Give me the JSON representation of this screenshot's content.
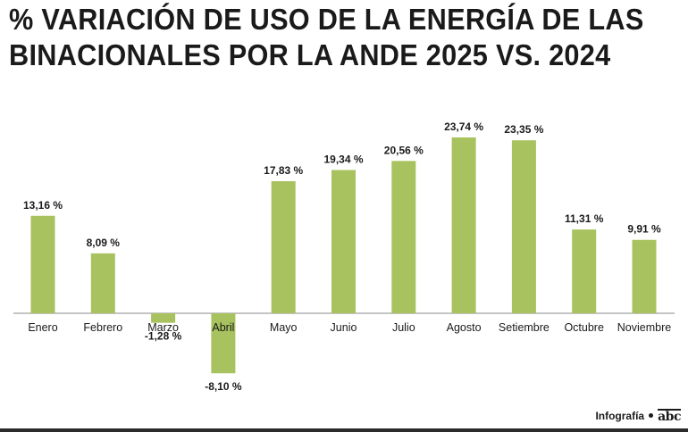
{
  "title": {
    "line1": "% VARIACIÓN DE USO DE LA ENERGÍA DE LAS",
    "line2": "BINACIONALES POR LA ANDE 2025 VS. 2024"
  },
  "credit": {
    "label": "Infografía",
    "logo_text": "abc"
  },
  "colors": {
    "bar": "#a7c25e",
    "axis": "#8a8a8a",
    "text": "#1a1a1a"
  },
  "chart_data": {
    "type": "bar",
    "title": "% VARIACIÓN DE USO DE LA ENERGÍA DE LAS BINACIONALES POR LA ANDE 2025 VS. 2024",
    "xlabel": "",
    "ylabel": "",
    "categories": [
      "Enero",
      "Febrero",
      "Marzo",
      "Abril",
      "Mayo",
      "Junio",
      "Julio",
      "Agosto",
      "Setiembre",
      "Octubre",
      "Noviembre"
    ],
    "values": [
      13.16,
      8.09,
      -1.28,
      -8.1,
      17.83,
      19.34,
      20.56,
      23.74,
      23.35,
      11.31,
      9.91
    ],
    "value_labels": [
      "13,16 %",
      "8,09 %",
      "-1,28 %",
      "-8,10 %",
      "17,83 %",
      "19,34 %",
      "20,56 %",
      "23,74 %",
      "23,35 %",
      "11,31 %",
      "9,91 %"
    ],
    "grid": false
  }
}
